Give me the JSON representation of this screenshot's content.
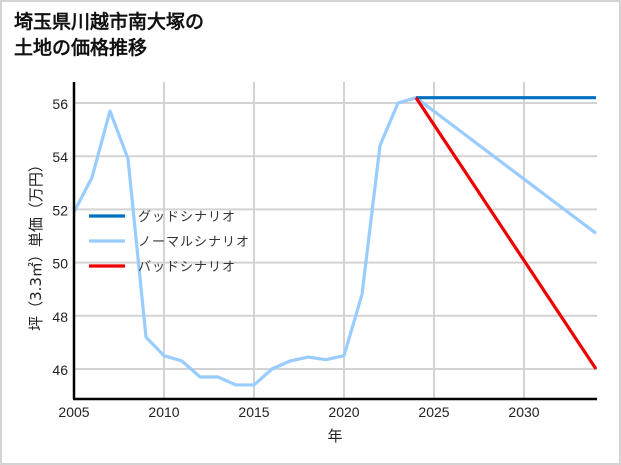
{
  "title_line1": "埼玉県川越市南大塚の",
  "title_line2": "土地の価格推移",
  "chart_data": {
    "type": "line",
    "title": "埼玉県川越市南大塚の土地の価格推移",
    "xlabel": "年",
    "ylabel": "坪（3.3㎡）単価（万円）",
    "xlim": [
      2005,
      2034
    ],
    "ylim": [
      44.9,
      56.8
    ],
    "x_ticks": [
      2005,
      2010,
      2015,
      2020,
      2025,
      2030
    ],
    "y_ticks": [
      46,
      48,
      50,
      52,
      54,
      56
    ],
    "grid": true,
    "legend_position": "center-left",
    "series": [
      {
        "name": "グッドシナリオ",
        "color": "#0070c0",
        "x": [
          2024,
          2034
        ],
        "values": [
          56.2,
          56.2
        ]
      },
      {
        "name": "ノーマルシナリオ",
        "color": "#99ccff",
        "x": [
          2005,
          2006,
          2007,
          2008,
          2009,
          2010,
          2011,
          2012,
          2013,
          2014,
          2015,
          2016,
          2017,
          2018,
          2019,
          2020,
          2021,
          2022,
          2023,
          2024,
          2034
        ],
        "values": [
          51.9,
          53.2,
          55.7,
          53.9,
          47.2,
          46.5,
          46.3,
          45.7,
          45.7,
          45.4,
          45.4,
          46.0,
          46.3,
          46.45,
          46.35,
          46.5,
          48.8,
          54.4,
          56.0,
          56.2,
          51.1
        ]
      },
      {
        "name": "バッドシナリオ",
        "color": "#ee0000",
        "x": [
          2024,
          2034
        ],
        "values": [
          56.2,
          46.0
        ]
      }
    ]
  }
}
